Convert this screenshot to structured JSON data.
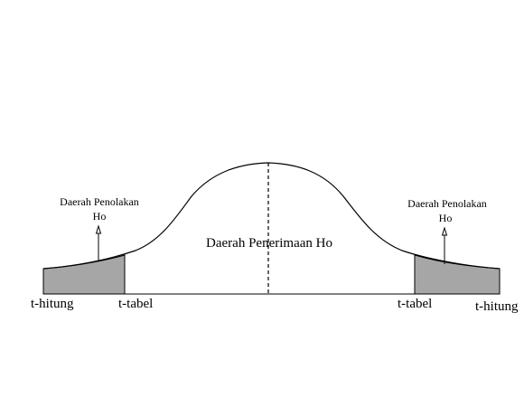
{
  "labels": {
    "rejection_left_line1": "Daerah Penolakan",
    "rejection_left_line2": "Ho",
    "rejection_right_line1": "Daerah Penolakan",
    "rejection_right_line2": "Ho",
    "acceptance": "Daerah Penerimaan Ho",
    "t_hitung_left": "t-hitung",
    "t_tabel_left": "t-tabel",
    "t_tabel_right": "t-tabel",
    "t_hitung_right": "t-hitung"
  },
  "colors": {
    "line": "#000000",
    "rejection_fill": "#a6a6a6",
    "background": "#ffffff"
  }
}
